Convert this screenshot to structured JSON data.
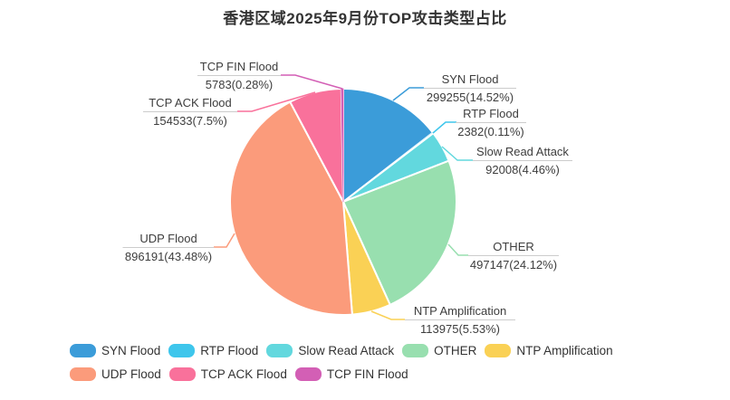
{
  "chart_data": {
    "type": "pie",
    "title": "香港区域2025年9月份TOP攻击类型占比",
    "legend_position": "bottom",
    "background_color": "#FFFFFF",
    "label_text_color": "#3D3D3D",
    "label_divider_color": "#CCCCCC",
    "series": [
      {
        "name": "SYN Flood",
        "value": 299255,
        "percent": 14.52,
        "value_label": "299255(14.52%)",
        "color": "#3B9CD9"
      },
      {
        "name": "RTP Flood",
        "value": 2382,
        "percent": 0.11,
        "value_label": "2382(0.11%)",
        "color": "#3EC6EC"
      },
      {
        "name": "Slow Read Attack",
        "value": 92008,
        "percent": 4.46,
        "value_label": "92008(4.46%)",
        "color": "#62D8DE"
      },
      {
        "name": "OTHER",
        "value": 497147,
        "percent": 24.12,
        "value_label": "497147(24.12%)",
        "color": "#98DFAF"
      },
      {
        "name": "NTP Amplification",
        "value": 113975,
        "percent": 5.53,
        "value_label": "113975(5.53%)",
        "color": "#FAD155"
      },
      {
        "name": "UDP Flood",
        "value": 896191,
        "percent": 43.48,
        "value_label": "896191(43.48%)",
        "color": "#FB9B7B"
      },
      {
        "name": "TCP ACK Flood",
        "value": 154533,
        "percent": 7.5,
        "value_label": "154533(7.5%)",
        "color": "#F9719B"
      },
      {
        "name": "TCP FIN Flood",
        "value": 5783,
        "percent": 0.28,
        "value_label": "5783(0.28%)",
        "color": "#D35FB5"
      }
    ],
    "legend_rows": [
      [
        "SYN Flood",
        "RTP Flood",
        "Slow Read Attack",
        "OTHER",
        "NTP Amplification"
      ],
      [
        "UDP Flood",
        "TCP ACK Flood",
        "TCP FIN Flood"
      ]
    ]
  }
}
